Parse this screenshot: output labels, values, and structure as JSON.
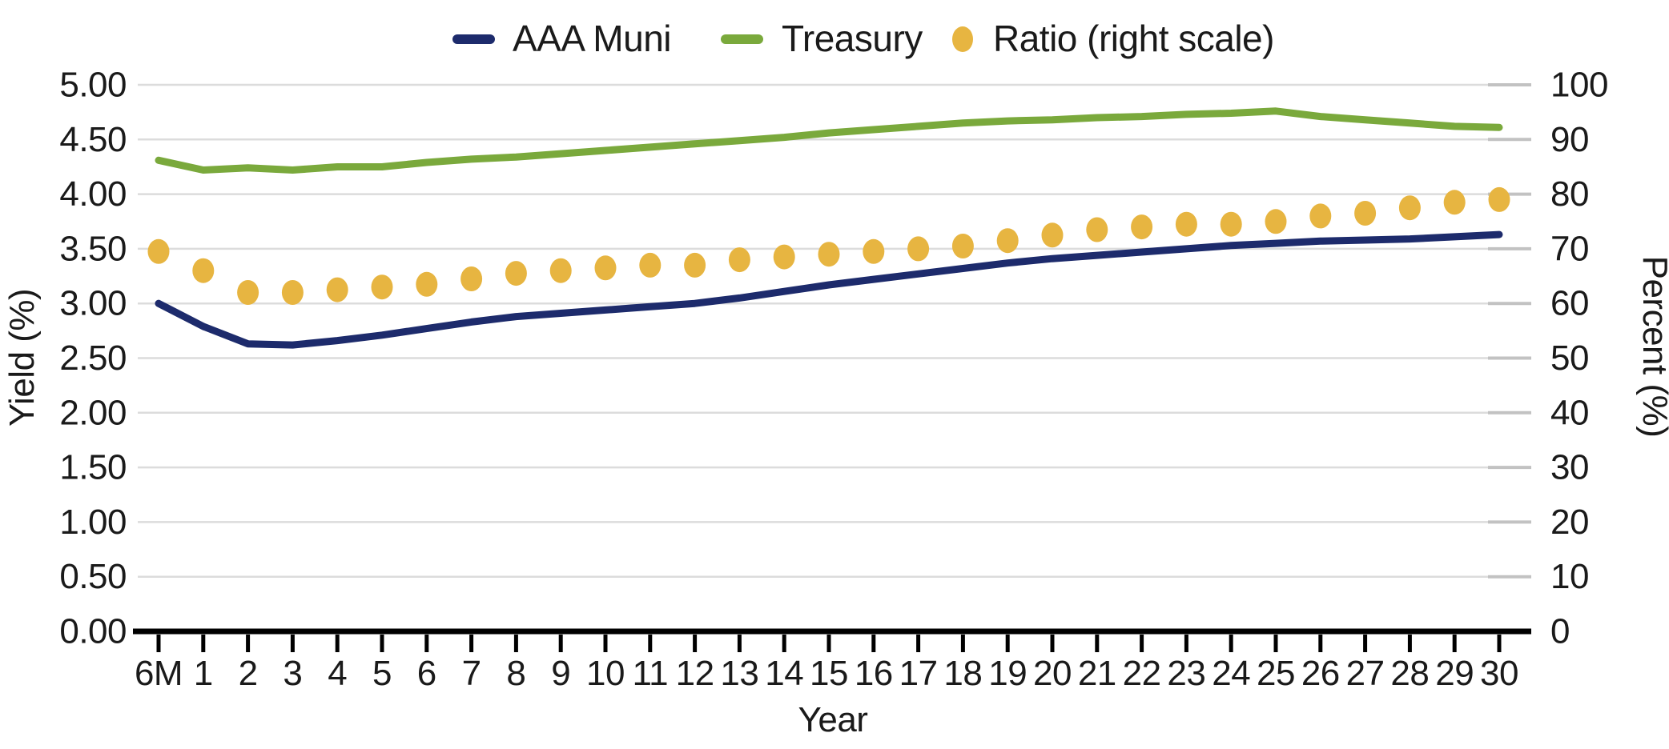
{
  "chart_data": {
    "type": "line",
    "title": "",
    "x": {
      "title": "Year",
      "categories": [
        "6M",
        "1",
        "2",
        "3",
        "4",
        "5",
        "6",
        "7",
        "8",
        "9",
        "10",
        "11",
        "12",
        "13",
        "14",
        "15",
        "16",
        "17",
        "18",
        "19",
        "20",
        "21",
        "22",
        "23",
        "24",
        "25",
        "26",
        "27",
        "28",
        "29",
        "30"
      ]
    },
    "y_left": {
      "title": "Yield (%)",
      "min": 0,
      "max": 5,
      "tick_step": 0.5,
      "tick_labels": [
        "0.00",
        "0.50",
        "1.00",
        "1.50",
        "2.00",
        "2.50",
        "3.00",
        "3.50",
        "4.00",
        "4.50",
        "5.00"
      ]
    },
    "y_right": {
      "title": "Percent (%)",
      "min": 0,
      "max": 100,
      "tick_step": 10,
      "tick_labels": [
        "0",
        "10",
        "20",
        "30",
        "40",
        "50",
        "60",
        "70",
        "80",
        "90",
        "100"
      ]
    },
    "grid": true,
    "legend_position": "top-center",
    "series": [
      {
        "name": "AAA Muni",
        "type": "line",
        "axis": "left",
        "color": "#1d2b6c",
        "values": [
          3.0,
          2.79,
          2.63,
          2.62,
          2.66,
          2.71,
          2.77,
          2.83,
          2.88,
          2.91,
          2.94,
          2.97,
          3.0,
          3.05,
          3.11,
          3.17,
          3.22,
          3.27,
          3.32,
          3.37,
          3.41,
          3.44,
          3.47,
          3.5,
          3.53,
          3.55,
          3.57,
          3.58,
          3.59,
          3.61,
          3.63
        ]
      },
      {
        "name": "Treasury",
        "type": "line",
        "axis": "left",
        "color": "#7aa93c",
        "values": [
          4.31,
          4.22,
          4.24,
          4.22,
          4.25,
          4.25,
          4.29,
          4.32,
          4.34,
          4.37,
          4.4,
          4.43,
          4.46,
          4.49,
          4.52,
          4.56,
          4.59,
          4.62,
          4.65,
          4.67,
          4.68,
          4.7,
          4.71,
          4.73,
          4.74,
          4.76,
          4.71,
          4.68,
          4.65,
          4.62,
          4.61
        ]
      },
      {
        "name": "Ratio (right scale)",
        "type": "scatter",
        "axis": "right",
        "color": "#e7b541",
        "values": [
          69.5,
          66,
          62,
          62,
          62.5,
          63,
          63.5,
          64.5,
          65.5,
          66,
          66.5,
          67,
          67,
          68,
          68.5,
          69,
          69.5,
          70,
          70.5,
          71.5,
          72.5,
          73.5,
          74,
          74.5,
          74.5,
          75,
          76,
          76.5,
          77.5,
          78.5,
          79
        ]
      }
    ]
  },
  "colors": {
    "gridline": "#dcdcdc",
    "right_axis_tick": "#c2c2c2",
    "axis_line": "#000000",
    "text": "#1a1a1a"
  }
}
